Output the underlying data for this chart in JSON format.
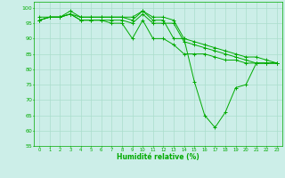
{
  "title": "",
  "xlabel": "Humidité relative (%)",
  "ylabel": "",
  "background_color": "#cceee8",
  "grid_color": "#aaddcc",
  "line_color": "#00aa00",
  "ylim": [
    55,
    102
  ],
  "xlim": [
    -0.5,
    23.5
  ],
  "yticks": [
    55,
    60,
    65,
    70,
    75,
    80,
    85,
    90,
    95,
    100
  ],
  "xticks": [
    0,
    1,
    2,
    3,
    4,
    5,
    6,
    7,
    8,
    9,
    10,
    11,
    12,
    13,
    14,
    15,
    16,
    17,
    18,
    19,
    20,
    21,
    22,
    23
  ],
  "series": [
    [
      97,
      97,
      97,
      99,
      97,
      97,
      97,
      97,
      97,
      97,
      99,
      96,
      96,
      90,
      90,
      76,
      65,
      61,
      66,
      74,
      75,
      82,
      82,
      82
    ],
    [
      96,
      97,
      97,
      98,
      97,
      97,
      97,
      97,
      97,
      96,
      99,
      97,
      97,
      96,
      90,
      89,
      88,
      87,
      86,
      85,
      84,
      84,
      83,
      82
    ],
    [
      96,
      97,
      97,
      98,
      96,
      96,
      96,
      96,
      96,
      95,
      98,
      95,
      95,
      95,
      89,
      88,
      87,
      86,
      85,
      84,
      83,
      82,
      82,
      82
    ],
    [
      96,
      97,
      97,
      98,
      96,
      96,
      96,
      95,
      95,
      90,
      96,
      90,
      90,
      88,
      85,
      85,
      85,
      84,
      83,
      83,
      82,
      82,
      82,
      82
    ]
  ]
}
